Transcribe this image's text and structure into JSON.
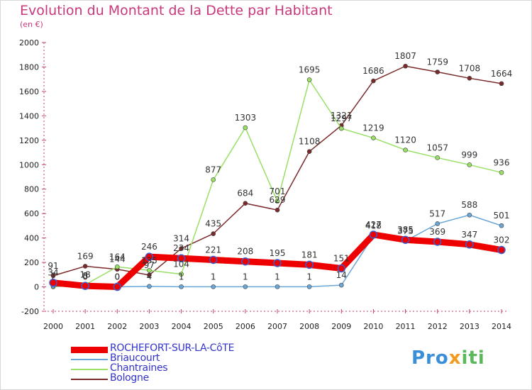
{
  "title": "Evolution du Montant de la Dette par Habitant",
  "subtitle": "(en €)",
  "logo": {
    "text": "Proxiti",
    "parts": [
      "Pro",
      "x",
      "iti"
    ]
  },
  "chart_data": {
    "type": "line",
    "x": [
      "2000",
      "2001",
      "2002",
      "2003",
      "2004",
      "2005",
      "2006",
      "2007",
      "2008",
      "2009",
      "2010",
      "2011",
      "2012",
      "2013",
      "2014"
    ],
    "ylim": [
      -200,
      2000
    ],
    "yticks": [
      -200,
      0,
      200,
      400,
      600,
      800,
      1000,
      1200,
      1400,
      1600,
      1800,
      2000
    ],
    "grid": false,
    "legend": "bottom-left",
    "series": [
      {
        "name": "ROCHEFORT-SUR-LA-CôTE",
        "color": "#ee0000",
        "width": 9,
        "values": [
          34,
          8,
          0,
          246,
          234,
          221,
          208,
          195,
          181,
          151,
          427,
          385,
          369,
          347,
          302
        ],
        "labels": [
          "34",
          "8",
          "0",
          "246",
          "234",
          "221",
          "208",
          "195",
          "181",
          "151",
          "427",
          "385",
          "369",
          "347",
          "302"
        ]
      },
      {
        "name": "Briaucourt",
        "color": "#6aa7d8",
        "width": 1.5,
        "values": [
          7,
          0,
          0,
          4,
          1,
          1,
          1,
          1,
          1,
          14,
          418,
          375,
          517,
          588,
          501
        ],
        "labels": [
          "7",
          "0",
          "0",
          "4",
          "1",
          "1",
          "1",
          "1",
          "1",
          "14",
          "418",
          "375",
          "517",
          "588",
          "501"
        ]
      },
      {
        "name": "Chantraines",
        "color": "#99e066",
        "width": 1.5,
        "values": [
          0,
          18,
          164,
          135,
          104,
          877,
          1303,
          701,
          1695,
          1297,
          1219,
          1120,
          1057,
          999,
          936
        ],
        "labels": [
          "",
          "18",
          "164",
          "135",
          "104",
          "877",
          "1303",
          "701",
          "1695",
          "1297",
          "1219",
          "1120",
          "1057",
          "999",
          "936"
        ]
      },
      {
        "name": "Bologne",
        "color": "#7a2a2a",
        "width": 1.5,
        "values": [
          91,
          169,
          144,
          97,
          314,
          435,
          684,
          629,
          1108,
          1321,
          1686,
          1807,
          1759,
          1708,
          1664
        ],
        "labels": [
          "91",
          "169",
          "144",
          "97",
          "314",
          "435",
          "684",
          "629",
          "1108",
          "1321",
          "1686",
          "1807",
          "1759",
          "1708",
          "1664"
        ]
      }
    ]
  }
}
